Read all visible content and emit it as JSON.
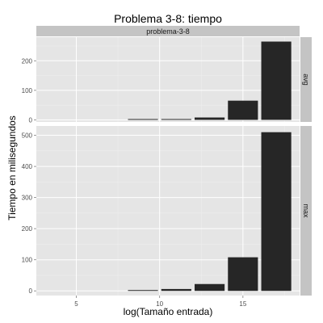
{
  "chart_data": {
    "type": "bar",
    "title": "Problema 3-8: tiempo",
    "xlabel": "log(Tamaño entrada)",
    "ylabel": "Tiempo en milisegundos",
    "column_strip": "problema-3-8",
    "x_ticks": [
      5,
      10,
      15
    ],
    "xlim": [
      2.6,
      18.4
    ],
    "bar_width": 1.8,
    "legend": "none",
    "grid": true,
    "colors": {
      "bar": "#262626",
      "panel_bg": "#e5e5e5",
      "strip_bg": "#c4c4c4",
      "grid_major": "#ffffff",
      "grid_minor": "#f0f0f0"
    },
    "panels": [
      {
        "strip": "avg",
        "ylim": [
          -7,
          280
        ],
        "y_ticks": [
          0,
          100,
          200
        ],
        "x": [
          5,
          7,
          9,
          11,
          13,
          15,
          17
        ],
        "values": [
          0,
          0,
          0.5,
          2,
          8,
          65,
          265
        ]
      },
      {
        "strip": "max",
        "ylim": [
          -15,
          530
        ],
        "y_ticks": [
          0,
          100,
          200,
          300,
          400,
          500
        ],
        "x": [
          5,
          7,
          9,
          11,
          13,
          15,
          17
        ],
        "values": [
          0,
          0,
          2,
          6,
          22,
          108,
          510
        ]
      }
    ]
  }
}
